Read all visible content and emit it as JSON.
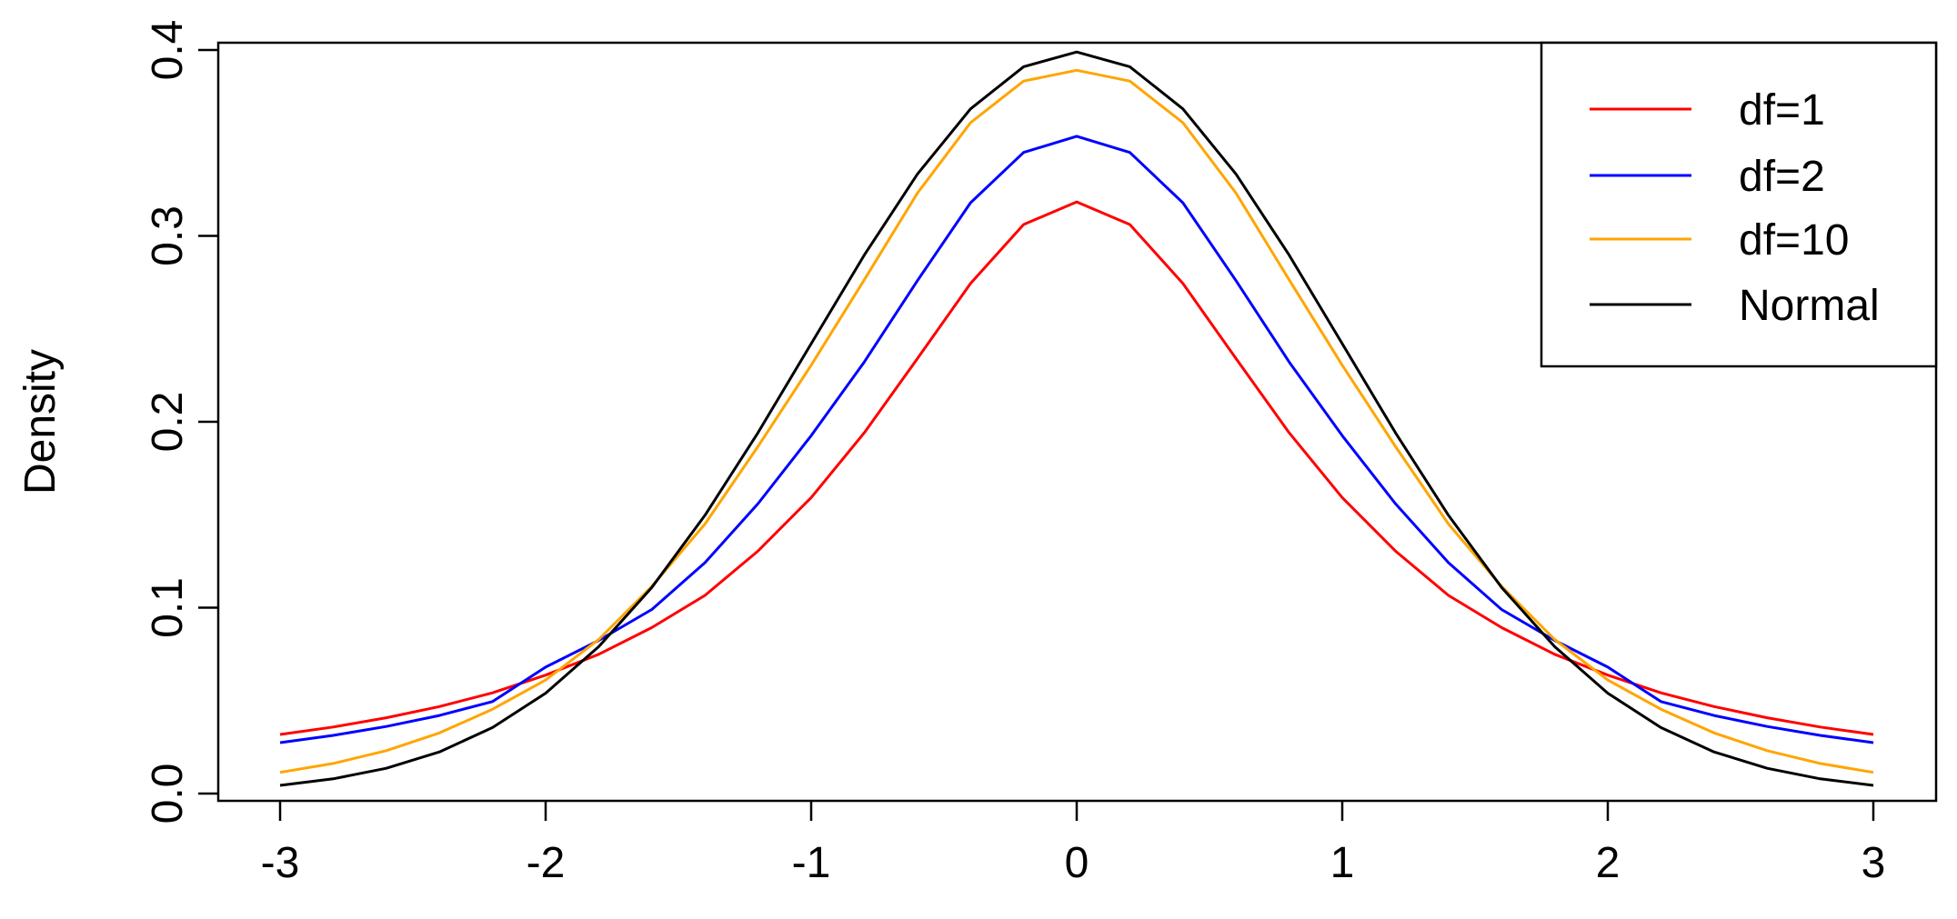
{
  "chart_data": {
    "type": "line",
    "title": "",
    "xlabel": "",
    "ylabel": "Density",
    "xlim": [
      -3,
      3
    ],
    "ylim": [
      0.0,
      0.4
    ],
    "x_ticks": [
      -3,
      -2,
      -1,
      0,
      1,
      2,
      3
    ],
    "x_tick_labels": [
      "-3",
      "-2",
      "-1",
      "0",
      "1",
      "2",
      "3"
    ],
    "y_ticks": [
      0.0,
      0.1,
      0.2,
      0.3,
      0.4
    ],
    "y_tick_labels": [
      "0.0",
      "0.1",
      "0.2",
      "0.3",
      "0.4"
    ],
    "grid": false,
    "legend_position": "top-right",
    "x": [
      -3.0,
      -2.8,
      -2.6,
      -2.4,
      -2.2,
      -2.0,
      -1.8,
      -1.6,
      -1.4,
      -1.2,
      -1.0,
      -0.8,
      -0.6,
      -0.4,
      -0.2,
      0.0,
      0.2,
      0.4,
      0.6,
      0.8,
      1.0,
      1.2,
      1.4,
      1.6,
      1.8,
      2.0,
      2.2,
      2.4,
      2.6,
      2.8,
      3.0
    ],
    "series": [
      {
        "name": "df=1",
        "color": "#ff0000",
        "values": [
          0.0318,
          0.0358,
          0.0408,
          0.0468,
          0.0542,
          0.0637,
          0.0749,
          0.0893,
          0.1066,
          0.1305,
          0.1592,
          0.1941,
          0.234,
          0.2744,
          0.3061,
          0.3183,
          0.3061,
          0.2744,
          0.234,
          0.1941,
          0.1592,
          0.1305,
          0.1066,
          0.0893,
          0.0749,
          0.0637,
          0.0542,
          0.0468,
          0.0408,
          0.0358,
          0.0318
        ]
      },
      {
        "name": "df=2",
        "color": "#0000ff",
        "values": [
          0.0274,
          0.0313,
          0.0361,
          0.042,
          0.0495,
          0.068,
          0.0824,
          0.099,
          0.1242,
          0.156,
          0.1925,
          0.2322,
          0.2759,
          0.3178,
          0.3449,
          0.3536,
          0.3449,
          0.3178,
          0.2759,
          0.2322,
          0.1925,
          0.156,
          0.1242,
          0.099,
          0.0824,
          0.068,
          0.0495,
          0.042,
          0.0361,
          0.0313,
          0.0274
        ]
      },
      {
        "name": "df=10",
        "color": "#ffa500",
        "values": [
          0.0114,
          0.0162,
          0.0231,
          0.0326,
          0.0454,
          0.0611,
          0.0829,
          0.1115,
          0.145,
          0.1868,
          0.2304,
          0.2764,
          0.323,
          0.3609,
          0.3833,
          0.3891,
          0.3833,
          0.3609,
          0.323,
          0.2764,
          0.2304,
          0.1868,
          0.145,
          0.1115,
          0.0829,
          0.0611,
          0.0454,
          0.0326,
          0.0231,
          0.0162,
          0.0114
        ]
      },
      {
        "name": "Normal",
        "color": "#000000",
        "values": [
          0.0044,
          0.0079,
          0.0136,
          0.0224,
          0.0355,
          0.054,
          0.079,
          0.1109,
          0.1497,
          0.1942,
          0.242,
          0.2897,
          0.3332,
          0.3683,
          0.391,
          0.3989,
          0.391,
          0.3683,
          0.3332,
          0.2897,
          0.242,
          0.1942,
          0.1497,
          0.1109,
          0.079,
          0.054,
          0.0355,
          0.0224,
          0.0136,
          0.0079,
          0.0044
        ]
      }
    ]
  }
}
